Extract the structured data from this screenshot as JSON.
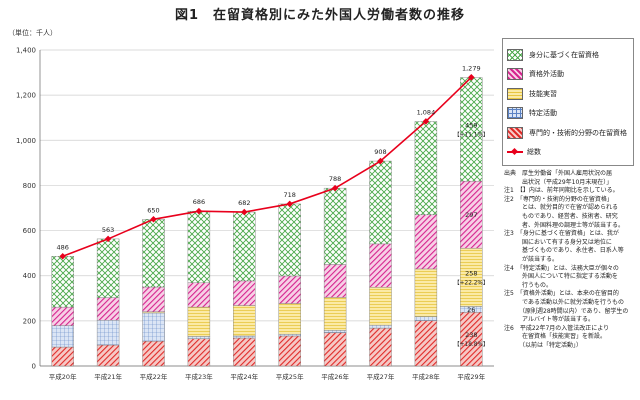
{
  "title": "図1　在留資格別にみた外国人労働者数の推移",
  "unit_label": "（単位：千人）",
  "legend": [
    {
      "label": "身分に基づく在留資格",
      "kind": "box",
      "fill": "cross-green"
    },
    {
      "label": "資格外活動",
      "kind": "box",
      "fill": "diag-magenta"
    },
    {
      "label": "技能実習",
      "kind": "box",
      "fill": "hatch-yellow"
    },
    {
      "label": "特定活動",
      "kind": "box",
      "fill": "grid-blue"
    },
    {
      "label": "専門的・技術的分野の在留資格",
      "kind": "box",
      "fill": "diag-red"
    },
    {
      "label": "総数",
      "kind": "line"
    }
  ],
  "notes": [
    "出典　厚生労働省「外国人雇用状況の届\n　　　出状況（平成29年10月末現在）」",
    "注1　【】内は、前年同期比を示している。",
    "注2　「専門的・技術的分野の在留資格」\n　　　とは、就労目的で在留が認められる\n　　　ものであり、経営者、技術者、研究\n　　　者、外国料理の調理士等が該当する。",
    "注3　「身分に基づく在留資格」とは、我が\n　　　国において有する身分又は地位に\n　　　基づくものであり、永住者、日系人等\n　　　が該当する。",
    "注4　「特定活動」とは、法務大臣が個々の\n　　　外国人について特に指定する活動を\n　　　行うもの。",
    "注5　「資格外活動」とは、本来の在留目的\n　　　である活動以外に就労活動を行うもの\n　　　（原則週28時間以内）であり、留学生の\n　　　アルバイト等が該当する。",
    "注6　平成22年7月の入管法改正により\n　　　在留資格「技能実習」を新設。\n　　　（以前は「特定活動」）"
  ],
  "colors": {
    "green": "#4aa84a",
    "magenta": "#d6238e",
    "yellow": "#e8c640",
    "blue": "#5b82c4",
    "red": "#e02a28",
    "total_line": "#e8001c"
  },
  "chart_data": {
    "type": "bar",
    "stacked": true,
    "categories": [
      "平成20年",
      "平成21年",
      "平成22年",
      "平成23年",
      "平成24年",
      "平成25年",
      "平成26年",
      "平成27年",
      "平成28年",
      "平成29年"
    ],
    "ylim": [
      0,
      1400
    ],
    "yticks": [
      0,
      200,
      400,
      600,
      800,
      1000,
      1200,
      1400
    ],
    "yticks_labels": [
      "0",
      "200",
      "400",
      "600",
      "800",
      "1,000",
      "1,200",
      "1,400"
    ],
    "grid": true,
    "series": [
      {
        "name": "専門的・技術的分野の在留資格",
        "values": [
          84,
          93,
          110,
          121,
          124,
          133,
          148,
          168,
          201,
          238
        ],
        "color": "red"
      },
      {
        "name": "特定活動",
        "values": [
          95,
          110,
          125,
          10,
          9,
          8,
          10,
          13,
          18,
          26
        ],
        "color": "blue"
      },
      {
        "name": "技能実習",
        "values": [
          0,
          0,
          5,
          130,
          135,
          136,
          146,
          168,
          211,
          258
        ],
        "color": "yellow"
      },
      {
        "name": "資格外活動",
        "values": [
          82,
          100,
          110,
          108,
          109,
          122,
          146,
          192,
          240,
          297
        ],
        "color": "magenta"
      },
      {
        "name": "身分に基づく在留資格",
        "values": [
          225,
          260,
          300,
          317,
          305,
          319,
          338,
          367,
          413,
          459
        ],
        "color": "green"
      }
    ],
    "line": {
      "name": "総数",
      "values": [
        486,
        563,
        650,
        686,
        682,
        718,
        788,
        908,
        1084,
        1279
      ]
    },
    "total_labels": [
      "486",
      "563",
      "650",
      "686",
      "682",
      "718",
      "788",
      "908",
      "1,084",
      "1,279"
    ],
    "segment_labels_last": [
      {
        "series": "専門的・技術的分野の在留資格",
        "value": "238",
        "change": "【+18.8%】"
      },
      {
        "series": "特定活動",
        "value": "26"
      },
      {
        "series": "技能実習",
        "value": "258",
        "change": "【+22.2%】"
      },
      {
        "series": "資格外活動",
        "value": "297"
      },
      {
        "series": "身分に基づく在留資格",
        "value": "459",
        "change": "【+11.1%】"
      }
    ]
  }
}
